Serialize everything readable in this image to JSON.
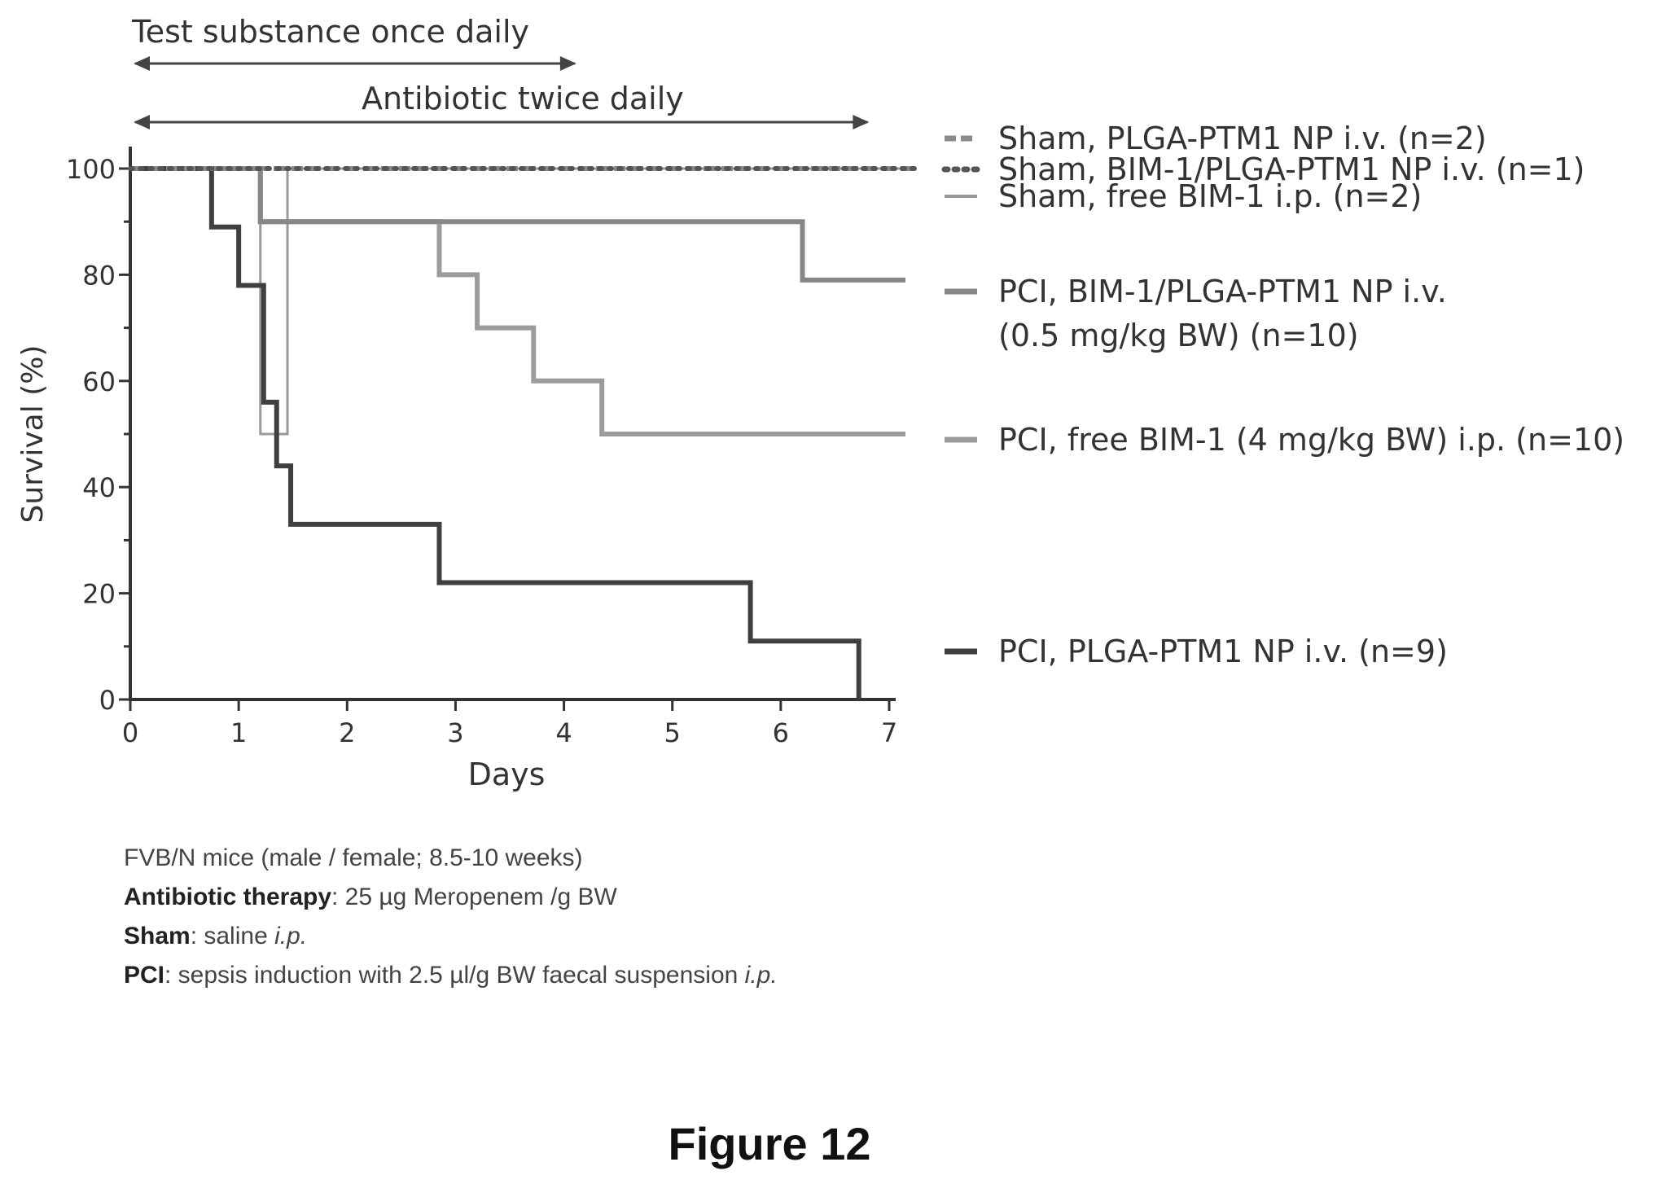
{
  "chart_data": {
    "type": "line",
    "step": true,
    "xlabel": "Days",
    "ylabel": "Survival (%)",
    "xlim": [
      0,
      7
    ],
    "ylim": [
      0,
      100
    ],
    "xticks": [
      "0",
      "1",
      "2",
      "3",
      "4",
      "5",
      "6",
      "7"
    ],
    "yticks": [
      "0",
      "20",
      "40",
      "60",
      "80",
      "100"
    ],
    "grid": false,
    "legend_position": "right",
    "series": [
      {
        "name": "Sham, PLGA-PTM1 NP i.v. (n=2)",
        "style": "dashed",
        "color": "#8a8a8a",
        "x": [
          0,
          7.25
        ],
        "y": [
          100,
          100
        ]
      },
      {
        "name": "Sham, BIM-1/PLGA-PTM1 NP i.v. (n=1)",
        "style": "dotted",
        "color": "#555555",
        "x": [
          0,
          7.25
        ],
        "y": [
          100,
          100
        ]
      },
      {
        "name": "Sham, free BIM-1 i.p. (n=2)",
        "style": "thin",
        "color": "#9a9a9a",
        "x": [
          0,
          1.2,
          1.45,
          7.25
        ],
        "y": [
          100,
          50,
          100,
          100
        ]
      },
      {
        "name": "PCI, BIM-1/PLGA-PTM1 NP i.v. (0.5 mg/kg BW) (n=10)",
        "style": "solid",
        "color": "#878787",
        "x": [
          0,
          1.2,
          6.2,
          7.15
        ],
        "y": [
          100,
          90,
          79,
          79
        ]
      },
      {
        "name": "PCI, free BIM-1 (4 mg/kg BW) i.p. (n=10)",
        "style": "solid",
        "color": "#9c9c9c",
        "x": [
          0,
          1.2,
          2.85,
          3.2,
          3.72,
          4.35,
          7.15
        ],
        "y": [
          100,
          90,
          80,
          70,
          60,
          50,
          50
        ]
      },
      {
        "name": "PCI, PLGA-PTM1 NP i.v. (n=9)",
        "style": "solid",
        "color": "#3f3f3f",
        "x": [
          0,
          0.75,
          1.0,
          1.23,
          1.35,
          1.48,
          2.85,
          5.72,
          6.72
        ],
        "y": [
          100,
          89,
          78,
          56,
          44,
          33,
          22,
          11,
          0
        ]
      }
    ],
    "annotations": [
      {
        "text": "Test substance once daily",
        "from_day": 0,
        "to_day": 4.1
      },
      {
        "text": "Antibiotic twice daily",
        "from_day": 0,
        "to_day": 6.8
      }
    ]
  },
  "notes": {
    "line1": "FVB/N mice (male / female; 8.5-10 weeks)",
    "line2_label": "Antibiotic therapy",
    "line2_text": ": 25 µg Meropenem /g BW",
    "line3_label": "Sham",
    "line3_text": ": saline ",
    "line3_italic": "i.p.",
    "line4_label": "PCI",
    "line4_text": ": sepsis induction with 2.5 µl/g BW faecal suspension ",
    "line4_italic": "i.p."
  },
  "figure_caption": "Figure 12"
}
